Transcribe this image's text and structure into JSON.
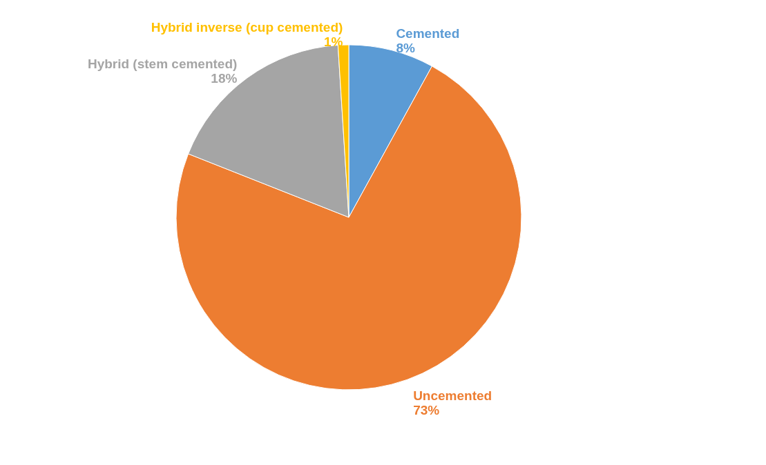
{
  "chart_data": {
    "type": "pie",
    "categories": [
      "Cemented",
      "Uncemented",
      "Hybrid (stem cemented)",
      "Hybrid inverse (cup cemented)"
    ],
    "values": [
      8,
      73,
      18,
      1
    ],
    "colors": [
      "#5b9bd5",
      "#ed7d31",
      "#a5a5a5",
      "#ffc000"
    ],
    "value_labels": [
      "8%",
      "73%",
      "18%",
      "1%"
    ],
    "legend": false
  }
}
